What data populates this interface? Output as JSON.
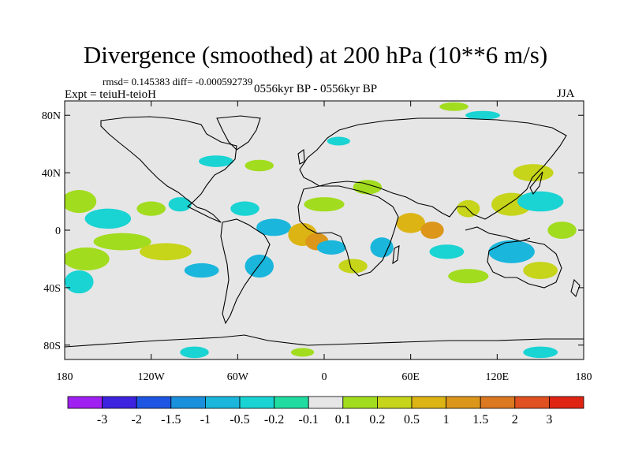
{
  "title": "Divergence (smoothed) at 200 hPa (10**6 m/s)",
  "stats": "rmsd= 0.145383 diff= -0.000592739",
  "expt": "Expt = teiuH-teioH",
  "period": "0556kyr BP - 0556kyr BP",
  "season": "JJA",
  "map": {
    "lon_range": [
      -180,
      180
    ],
    "lat_range": [
      -90,
      90
    ],
    "background": "#e6e6e6",
    "lat_ticks": [
      {
        "lat": 80,
        "label": "80N"
      },
      {
        "lat": 40,
        "label": "40N"
      },
      {
        "lat": 0,
        "label": "0"
      },
      {
        "lat": -40,
        "label": "40S"
      },
      {
        "lat": -80,
        "label": "80S"
      }
    ],
    "lon_ticks": [
      {
        "lon": -180,
        "label": "180"
      },
      {
        "lon": -120,
        "label": "120W"
      },
      {
        "lon": -60,
        "label": "60W"
      },
      {
        "lon": 0,
        "label": "0"
      },
      {
        "lon": 60,
        "label": "60E"
      },
      {
        "lon": 120,
        "label": "120E"
      },
      {
        "lon": 180,
        "label": "180"
      }
    ]
  },
  "colorbar": {
    "colors": [
      "#9f20f0",
      "#3d22df",
      "#1e56e3",
      "#1a90dc",
      "#1ab6dc",
      "#1ad3d3",
      "#20dca0",
      "#e6e6e6",
      "#a2dc1e",
      "#c6d41a",
      "#dcb414",
      "#dc961a",
      "#dc7820",
      "#e05020",
      "#e02414"
    ],
    "labels": [
      "-3",
      "-2",
      "-1.5",
      "-1",
      "-0.5",
      "-0.2",
      "-0.1",
      "0.1",
      "0.2",
      "0.5",
      "1",
      "1.5",
      "2",
      "3"
    ]
  },
  "chart_data": {
    "type": "heatmap",
    "title": "Divergence (smoothed) at 200 hPa (10**6 m/s)",
    "levels": [
      -3,
      -2,
      -1.5,
      -1,
      -0.5,
      -0.2,
      -0.1,
      0.1,
      0.2,
      0.5,
      1,
      1.5,
      2,
      3
    ],
    "xlim": [
      -180,
      180
    ],
    "ylim": [
      -90,
      90
    ],
    "blobs": [
      {
        "lon": -170,
        "lat": 20,
        "rlon": 12,
        "rlat": 8,
        "value": 0.2
      },
      {
        "lon": -150,
        "lat": 8,
        "rlon": 16,
        "rlat": 7,
        "value": -0.2
      },
      {
        "lon": -140,
        "lat": -8,
        "rlon": 20,
        "rlat": 6,
        "value": 0.2
      },
      {
        "lon": -165,
        "lat": -20,
        "rlon": 16,
        "rlat": 8,
        "value": 0.2
      },
      {
        "lon": -170,
        "lat": -36,
        "rlon": 10,
        "rlat": 8,
        "value": -0.2
      },
      {
        "lon": -120,
        "lat": 15,
        "rlon": 10,
        "rlat": 5,
        "value": 0.2
      },
      {
        "lon": -100,
        "lat": 18,
        "rlon": 8,
        "rlat": 5,
        "value": -0.2
      },
      {
        "lon": -110,
        "lat": -15,
        "rlon": 18,
        "rlat": 6,
        "value": 0.5
      },
      {
        "lon": -85,
        "lat": -28,
        "rlon": 12,
        "rlat": 5,
        "value": -0.5
      },
      {
        "lon": -55,
        "lat": 15,
        "rlon": 10,
        "rlat": 5,
        "value": -0.2
      },
      {
        "lon": -35,
        "lat": 2,
        "rlon": 12,
        "rlat": 6,
        "value": -0.5
      },
      {
        "lon": -15,
        "lat": -3,
        "rlon": 10,
        "rlat": 8,
        "value": 1
      },
      {
        "lon": -5,
        "lat": -8,
        "rlon": 8,
        "rlat": 6,
        "value": 1.5
      },
      {
        "lon": -45,
        "lat": -25,
        "rlon": 10,
        "rlat": 8,
        "value": -0.5
      },
      {
        "lon": 0,
        "lat": 18,
        "rlon": 14,
        "rlat": 5,
        "value": 0.2
      },
      {
        "lon": 5,
        "lat": -12,
        "rlon": 10,
        "rlat": 5,
        "value": -0.5
      },
      {
        "lon": 20,
        "lat": -25,
        "rlon": 10,
        "rlat": 5,
        "value": 0.5
      },
      {
        "lon": 40,
        "lat": -12,
        "rlon": 8,
        "rlat": 7,
        "value": -0.5
      },
      {
        "lon": 30,
        "lat": 30,
        "rlon": 10,
        "rlat": 5,
        "value": 0.2
      },
      {
        "lon": 60,
        "lat": 5,
        "rlon": 10,
        "rlat": 7,
        "value": 1
      },
      {
        "lon": 75,
        "lat": 0,
        "rlon": 8,
        "rlat": 6,
        "value": 1.5
      },
      {
        "lon": 85,
        "lat": -15,
        "rlon": 12,
        "rlat": 5,
        "value": -0.2
      },
      {
        "lon": 100,
        "lat": 15,
        "rlon": 8,
        "rlat": 6,
        "value": 0.5
      },
      {
        "lon": 130,
        "lat": 18,
        "rlon": 14,
        "rlat": 8,
        "value": 0.5
      },
      {
        "lon": 145,
        "lat": 40,
        "rlon": 14,
        "rlat": 6,
        "value": 0.5
      },
      {
        "lon": 150,
        "lat": 20,
        "rlon": 16,
        "rlat": 7,
        "value": -0.2
      },
      {
        "lon": 130,
        "lat": -15,
        "rlon": 16,
        "rlat": 8,
        "value": -0.5
      },
      {
        "lon": 150,
        "lat": -28,
        "rlon": 12,
        "rlat": 6,
        "value": 0.5
      },
      {
        "lon": 165,
        "lat": 0,
        "rlon": 10,
        "rlat": 6,
        "value": 0.2
      },
      {
        "lon": 100,
        "lat": -32,
        "rlon": 14,
        "rlat": 5,
        "value": 0.2
      },
      {
        "lon": -90,
        "lat": -85,
        "rlon": 10,
        "rlat": 4,
        "value": -0.2
      },
      {
        "lon": 150,
        "lat": -85,
        "rlon": 12,
        "rlat": 4,
        "value": -0.2
      },
      {
        "lon": -15,
        "lat": -85,
        "rlon": 8,
        "rlat": 3,
        "value": 0.2
      },
      {
        "lon": 90,
        "lat": 86,
        "rlon": 10,
        "rlat": 3,
        "value": 0.2
      },
      {
        "lon": 110,
        "lat": 80,
        "rlon": 12,
        "rlat": 3,
        "value": -0.2
      },
      {
        "lon": -75,
        "lat": 48,
        "rlon": 12,
        "rlat": 4,
        "value": -0.2
      },
      {
        "lon": -45,
        "lat": 45,
        "rlon": 10,
        "rlat": 4,
        "value": 0.2
      },
      {
        "lon": 10,
        "lat": 62,
        "rlon": 8,
        "rlat": 3,
        "value": -0.2
      }
    ]
  }
}
